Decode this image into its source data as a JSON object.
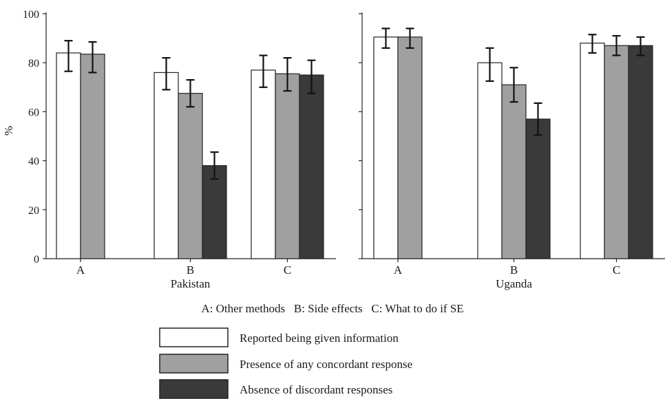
{
  "chart_data": {
    "type": "bar",
    "ylabel": "%",
    "ylim": [
      0,
      100
    ],
    "yticks": [
      0,
      20,
      40,
      60,
      80,
      100
    ],
    "grid": false,
    "legend_position": "bottom-center",
    "colors": {
      "Reported being given information": "#ffffff",
      "Presence of any concordant response": "#a0a0a0",
      "Absence of discordant responses": "#3a3a3a"
    },
    "series": [
      {
        "name": "Reported being given information"
      },
      {
        "name": "Presence of any concordant response"
      },
      {
        "name": "Absence of discordant responses"
      }
    ],
    "panels": [
      {
        "label": "Pakistan",
        "categories": [
          "A",
          "B",
          "C"
        ],
        "values": [
          [
            84,
            83.5,
            null
          ],
          [
            76,
            67.5,
            38
          ],
          [
            77,
            75.5,
            75
          ]
        ],
        "error_low": [
          [
            76.5,
            76,
            null
          ],
          [
            69,
            62,
            32.5
          ],
          [
            70,
            68.5,
            67.5
          ]
        ],
        "error_high": [
          [
            89,
            88.5,
            null
          ],
          [
            82,
            73,
            43.5
          ],
          [
            83,
            82,
            81
          ]
        ]
      },
      {
        "label": "Uganda",
        "categories": [
          "A",
          "B",
          "C"
        ],
        "values": [
          [
            90.5,
            90.5,
            null
          ],
          [
            80,
            71,
            57
          ],
          [
            88,
            87,
            87
          ]
        ],
        "error_low": [
          [
            86,
            86,
            null
          ],
          [
            72.5,
            64,
            50.5
          ],
          [
            84,
            83,
            83
          ]
        ],
        "error_high": [
          [
            94,
            94,
            null
          ],
          [
            86,
            78,
            63.5
          ],
          [
            91.5,
            91,
            90.5
          ]
        ]
      }
    ],
    "category_key": "A: Other methods   B: Side effects   C: What to do if SE"
  }
}
